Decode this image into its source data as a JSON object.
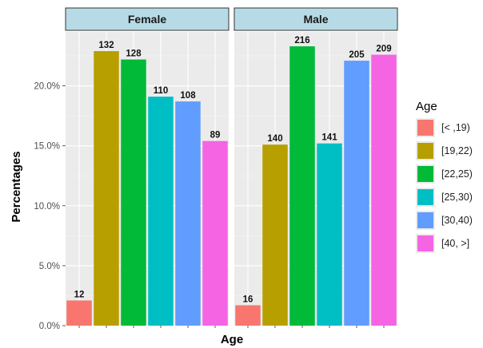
{
  "chart_data": {
    "type": "bar",
    "xlabel": "Age",
    "ylabel": "Percentages",
    "ylim": [
      0,
      24.5
    ],
    "y_ticks": [
      0,
      5,
      10,
      15,
      20
    ],
    "y_tick_labels": [
      "0.0%",
      "5.0%",
      "10.0%",
      "15.0%",
      "20.0%"
    ],
    "grid": true,
    "legend": {
      "title": "Age",
      "placement": "right",
      "entries": [
        "[< ,19)",
        "[19,22)",
        "[22,25)",
        "[25,30)",
        "[30,40)",
        "[40, >]"
      ]
    },
    "colors": [
      "#f8766d",
      "#b79f00",
      "#00ba38",
      "#00bfc4",
      "#619cff",
      "#f564e3"
    ],
    "categories": [
      "[< ,19)",
      "[19,22)",
      "[22,25)",
      "[25,30)",
      "[30,40)",
      "[40, >]"
    ],
    "facets": [
      {
        "label": "Female",
        "values": [
          2.1,
          22.9,
          22.2,
          19.1,
          18.7,
          15.4
        ],
        "counts": [
          "12",
          "132",
          "128",
          "110",
          "108",
          "89"
        ]
      },
      {
        "label": "Male",
        "values": [
          1.7,
          15.1,
          23.3,
          15.2,
          22.1,
          22.6
        ],
        "counts": [
          "16",
          "140",
          "216",
          "141",
          "205",
          "209"
        ]
      }
    ]
  }
}
